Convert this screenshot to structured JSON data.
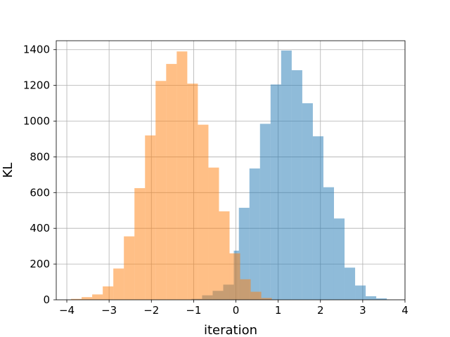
{
  "chart_data": {
    "type": "histogram",
    "xlabel": "iteration",
    "ylabel": "KL",
    "xlim": [
      -4.25,
      4.0
    ],
    "ylim": [
      0,
      1450
    ],
    "xticks": [
      -4,
      -3,
      -2,
      -1,
      0,
      1,
      2,
      3,
      4
    ],
    "yticks": [
      0,
      200,
      400,
      600,
      800,
      1000,
      1200,
      1400
    ],
    "grid": true,
    "series": [
      {
        "color": "#1f77b4",
        "opacity": 0.5,
        "bin_edges": [
          -1.05,
          -0.8,
          -0.55,
          -0.3,
          -0.05,
          0.07,
          0.32,
          0.57,
          0.82,
          1.07,
          1.32,
          1.57,
          1.82,
          2.07,
          2.32,
          2.57,
          2.82,
          3.07,
          3.32,
          3.57,
          3.63
        ],
        "counts": [
          5,
          25,
          50,
          85,
          275,
          515,
          735,
          985,
          1205,
          1395,
          1285,
          1100,
          915,
          630,
          455,
          180,
          80,
          20,
          8,
          2
        ]
      },
      {
        "color": "#ff7f0e",
        "opacity": 0.5,
        "bin_edges": [
          -3.9,
          -3.65,
          -3.4,
          -3.15,
          -2.9,
          -2.65,
          -2.4,
          -2.15,
          -1.9,
          -1.65,
          -1.4,
          -1.15,
          -0.9,
          -0.65,
          -0.4,
          -0.15,
          0.1,
          0.35,
          0.6,
          0.85
        ],
        "counts": [
          5,
          15,
          30,
          75,
          175,
          355,
          625,
          920,
          1225,
          1320,
          1390,
          1210,
          980,
          740,
          495,
          260,
          115,
          45,
          10
        ]
      }
    ]
  }
}
